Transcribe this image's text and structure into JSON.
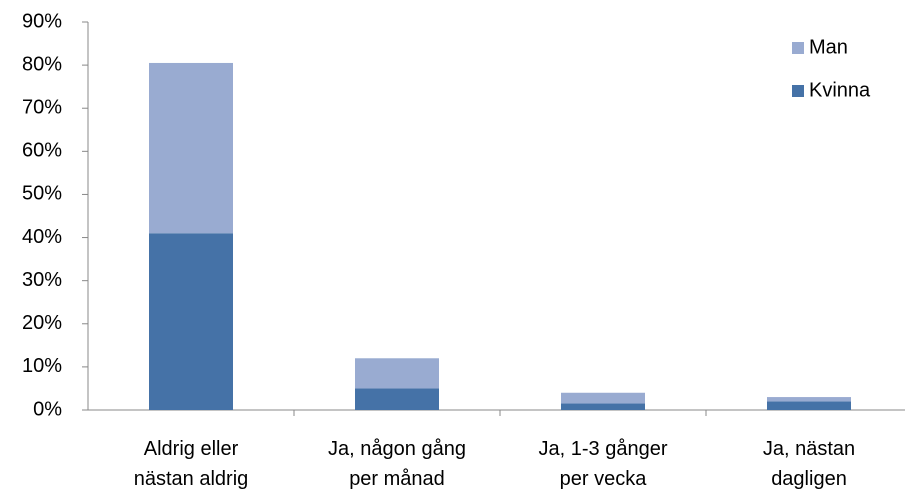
{
  "chart_data": {
    "type": "stacked_bar",
    "categories": [
      [
        "Aldrig eller",
        "nästan aldrig"
      ],
      [
        "Ja, någon gång",
        "per månad"
      ],
      [
        "Ja, 1-3 gånger",
        "per vecka"
      ],
      [
        "Ja, nästan",
        "dagligen"
      ]
    ],
    "series": [
      {
        "name": "Kvinna",
        "color": "#4572a7",
        "values": [
          41,
          5,
          1.5,
          2
        ]
      },
      {
        "name": "Man",
        "color": "#99abd1",
        "values": [
          39.5,
          7,
          2.5,
          1
        ]
      }
    ],
    "ylim": [
      0,
      90
    ],
    "yticks": [
      {
        "value": 0,
        "label": "0%"
      },
      {
        "value": 10,
        "label": "10%"
      },
      {
        "value": 20,
        "label": "20%"
      },
      {
        "value": 30,
        "label": "30%"
      },
      {
        "value": 40,
        "label": "40%"
      },
      {
        "value": 50,
        "label": "50%"
      },
      {
        "value": 60,
        "label": "60%"
      },
      {
        "value": 70,
        "label": "70%"
      },
      {
        "value": 80,
        "label": "80%"
      },
      {
        "value": 90,
        "label": "90%"
      }
    ],
    "grid": false,
    "legend": "top-right"
  }
}
